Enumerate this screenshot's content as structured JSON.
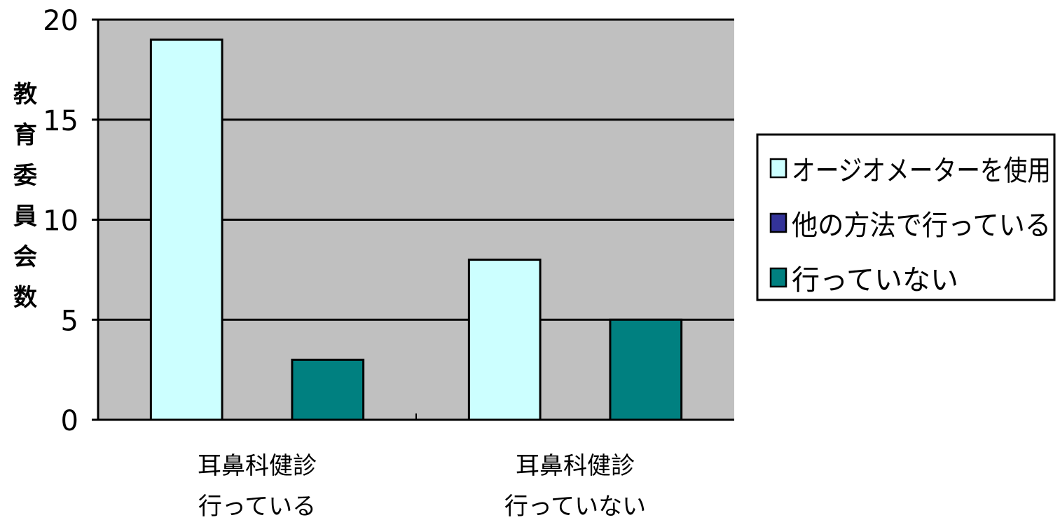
{
  "chart_data": {
    "type": "bar",
    "title": "",
    "xlabel": "",
    "ylabel": "教育委員会数",
    "ylim": [
      0,
      20
    ],
    "yticks": [
      0,
      5,
      10,
      15,
      20
    ],
    "grid": true,
    "legend_position": "right",
    "categories": [
      [
        "耳鼻科健診",
        "行っている"
      ],
      [
        "耳鼻科健診",
        "行っていない"
      ]
    ],
    "series": [
      {
        "name": "オージオメーターを使用",
        "color": "#ccffff",
        "values": [
          19,
          8
        ]
      },
      {
        "name": "他の方法で行っている",
        "color": "#333399",
        "values": [
          0,
          0
        ]
      },
      {
        "name": "行っていない",
        "color": "#008080",
        "values": [
          3,
          5
        ]
      }
    ],
    "plot_background": "#c0c0c0"
  }
}
